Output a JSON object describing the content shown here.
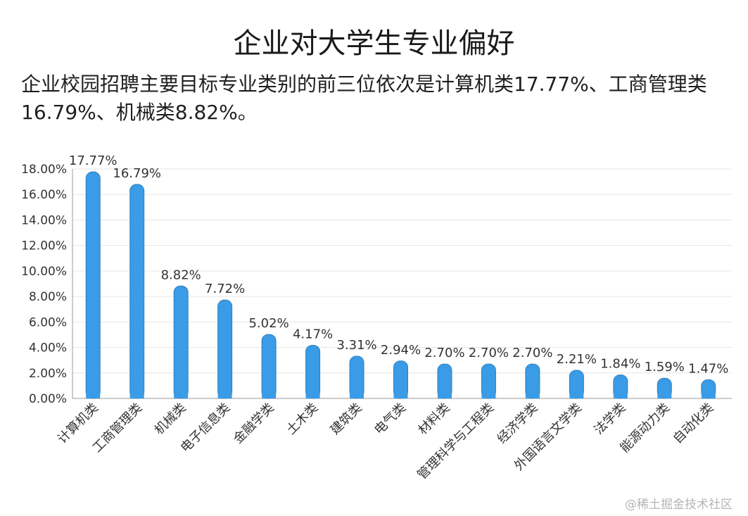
{
  "title": "企业对大学生专业偏好",
  "subtitle": "企业校园招聘主要目标专业类别的前三位依次是计算机类17.77%、工商管理类16.79%、机械类8.82%。",
  "watermark": "@稀土掘金技术社区",
  "colors": {
    "bar": "#3a9be6",
    "bar_stroke": "#2e7fbf",
    "grid": "#e6e6e6",
    "axis": "#9a9a9a"
  },
  "chart_data": {
    "type": "bar",
    "categories": [
      "计算机类",
      "工商管理类",
      "机械类",
      "电子信息类",
      "金融学类",
      "土木类",
      "建筑类",
      "电气类",
      "材料类",
      "管理科学与工程类",
      "经济学类",
      "外国语言文学类",
      "法学类",
      "能源动力类",
      "自动化类"
    ],
    "values": [
      17.77,
      16.79,
      8.82,
      7.72,
      5.02,
      4.17,
      3.31,
      2.94,
      2.7,
      2.7,
      2.7,
      2.21,
      1.84,
      1.59,
      1.47
    ],
    "value_labels": [
      "17.77%",
      "16.79%",
      "8.82%",
      "7.72%",
      "5.02%",
      "4.17%",
      "3.31%",
      "2.94%",
      "2.70%",
      "2.70%",
      "2.70%",
      "2.21%",
      "1.84%",
      "1.59%",
      "1.47%"
    ],
    "yticks": [
      "0.00%",
      "2.00%",
      "4.00%",
      "6.00%",
      "8.00%",
      "10.00%",
      "12.00%",
      "14.00%",
      "16.00%",
      "18.00%"
    ],
    "ylim": [
      0,
      18
    ],
    "grid": true,
    "legend": "none"
  }
}
